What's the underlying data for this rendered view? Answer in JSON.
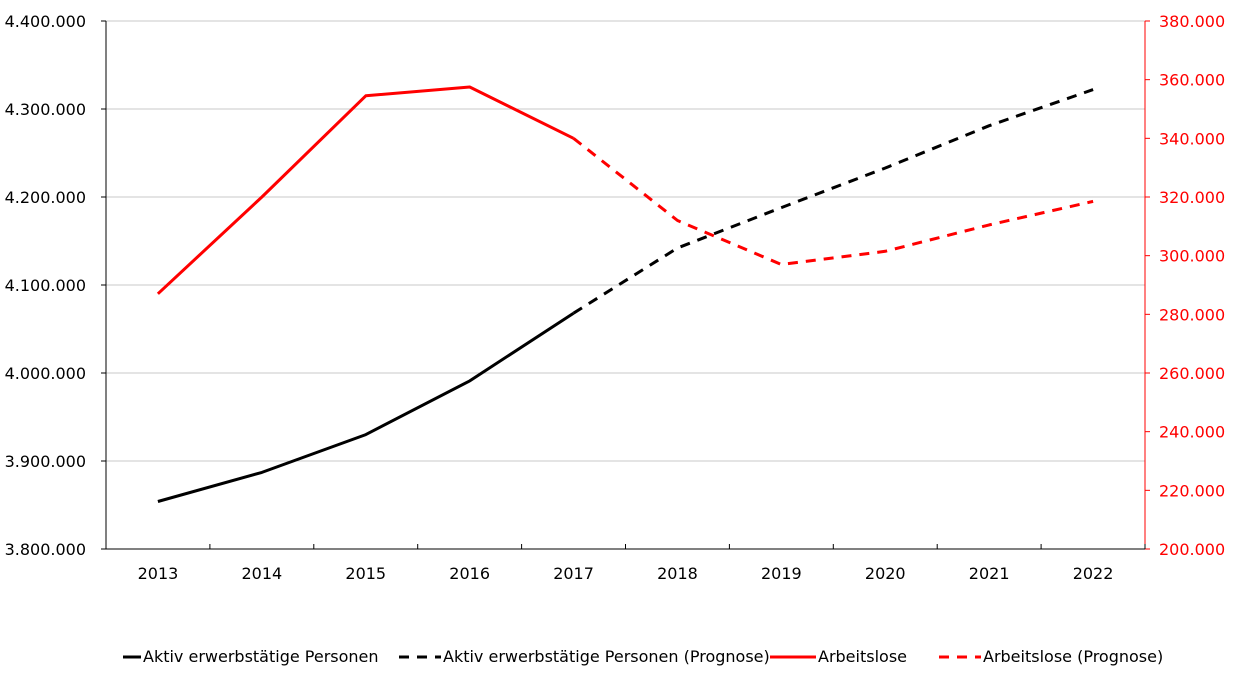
{
  "chart_data": {
    "type": "line",
    "x": [
      "2013",
      "2014",
      "2015",
      "2016",
      "2017",
      "2018",
      "2019",
      "2020",
      "2021",
      "2022"
    ],
    "y_left": {
      "ylim": [
        3800000,
        4400000
      ],
      "ticks": [
        "3.800.000",
        "3.900.000",
        "4.000.000",
        "4.100.000",
        "4.200.000",
        "4.300.000",
        "4.400.000"
      ],
      "tick_values": [
        3800000,
        3900000,
        4000000,
        4100000,
        4200000,
        4300000,
        4400000
      ]
    },
    "y_right": {
      "ylim": [
        200000,
        380000
      ],
      "ticks": [
        "200.000",
        "220.000",
        "240.000",
        "260.000",
        "280.000",
        "300.000",
        "320.000",
        "340.000",
        "360.000",
        "380.000"
      ],
      "tick_values": [
        200000,
        220000,
        240000,
        260000,
        280000,
        300000,
        320000,
        340000,
        360000,
        380000
      ]
    },
    "grid": "horizontal",
    "legend_position": "bottom",
    "series": [
      {
        "name": "Aktiv erwerbstätige Personen",
        "axis": "left",
        "style": "solid",
        "color": "#000000",
        "x": [
          "2013",
          "2014",
          "2015",
          "2016",
          "2017"
        ],
        "values": [
          3854000,
          3887000,
          3930000,
          3991000,
          4068000
        ]
      },
      {
        "name": "Aktiv erwerbstätige Personen (Prognose)",
        "axis": "left",
        "style": "dashed",
        "color": "#000000",
        "x": [
          "2017",
          "2018",
          "2019",
          "2020",
          "2021",
          "2022"
        ],
        "values": [
          4068000,
          4142000,
          4188000,
          4233000,
          4281000,
          4322000
        ]
      },
      {
        "name": "Arbeitslose",
        "axis": "right",
        "style": "solid",
        "color": "#ff0000",
        "x": [
          "2013",
          "2014",
          "2015",
          "2016",
          "2017"
        ],
        "values": [
          287000,
          320000,
          354500,
          357500,
          340000
        ]
      },
      {
        "name": "Arbeitslose (Prognose)",
        "axis": "right",
        "style": "dashed",
        "color": "#ff0000",
        "x": [
          "2017",
          "2018",
          "2019",
          "2020",
          "2021",
          "2022"
        ],
        "values": [
          340000,
          312000,
          297000,
          301500,
          310500,
          318500
        ]
      }
    ]
  }
}
